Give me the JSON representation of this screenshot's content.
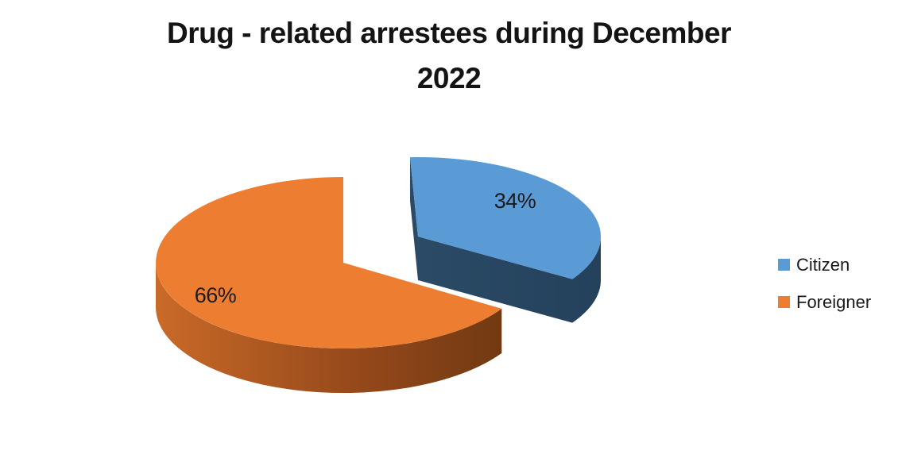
{
  "title": {
    "line1": "Drug - related arrestees during December",
    "line2": "2022",
    "full_text": "Drug - related arrestees during December 2022"
  },
  "chart_data": {
    "type": "pie",
    "style": "3d-exploded-pie",
    "title": "Drug - related arrestees during December 2022",
    "categories": [
      "Citizen",
      "Foreigner"
    ],
    "values": [
      34,
      66
    ],
    "unit": "percent",
    "data_labels": [
      "34%",
      "66%"
    ],
    "colors": [
      "#5B9BD5",
      "#ED7D31"
    ],
    "side_shade_gradients": {
      "citizen": [
        "#2B4B66",
        "#24415C"
      ],
      "foreigner": [
        "#C96A28",
        "#96491B",
        "#6E3811"
      ]
    },
    "exploded_slice": "Citizen",
    "legend_position": "right",
    "background": "#FFFFFF",
    "text_color": "#1A1A1A"
  },
  "legend": {
    "items": [
      {
        "label": "Citizen",
        "color": "#5B9BD5"
      },
      {
        "label": "Foreigner",
        "color": "#ED7D31"
      }
    ]
  }
}
